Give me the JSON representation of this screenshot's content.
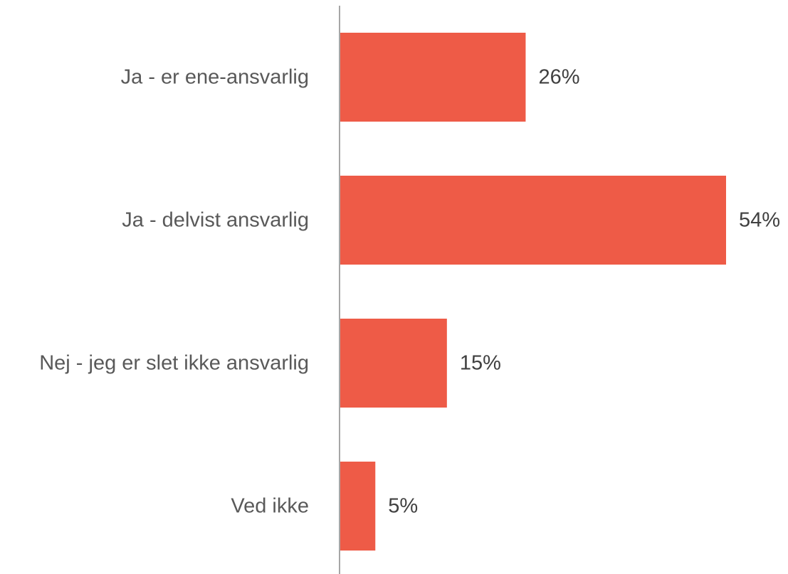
{
  "chart_data": {
    "type": "bar",
    "orientation": "horizontal",
    "categories": [
      "Ja - er ene-ansvarlig",
      "Ja - delvist ansvarlig",
      "Nej - jeg er slet ikke ansvarlig",
      "Ved ikke"
    ],
    "values": [
      26,
      54,
      15,
      5
    ],
    "value_labels": [
      "26%",
      "54%",
      "15%",
      "5%"
    ],
    "unit": "%",
    "xlim": [
      0,
      54
    ],
    "grid": false,
    "legend": "none",
    "bar_color": "#EE5B47",
    "axis_color": "#A6A6A6",
    "title": "",
    "xlabel": "",
    "ylabel": ""
  }
}
